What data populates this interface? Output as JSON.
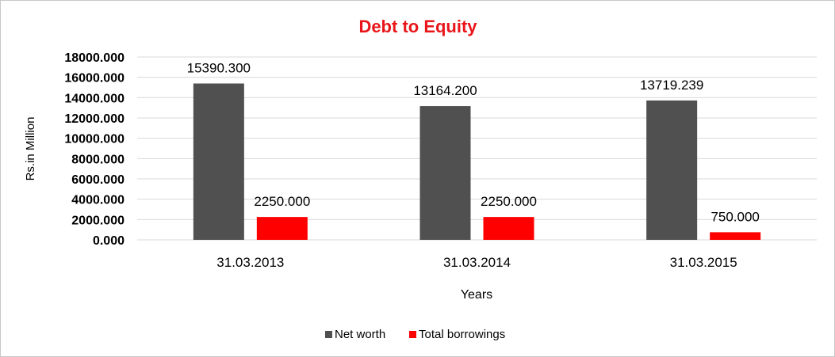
{
  "chart_data": {
    "type": "bar",
    "title": "Debt to Equity",
    "xlabel": "Years",
    "ylabel": "Rs.in Million",
    "categories": [
      "31.03.2013",
      "31.03.2014",
      "31.03.2015"
    ],
    "ylim": [
      0,
      18000
    ],
    "yticks": [
      0,
      2000,
      4000,
      6000,
      8000,
      10000,
      12000,
      14000,
      16000,
      18000
    ],
    "ytick_labels": [
      "0.000",
      "2000.000",
      "4000.000",
      "6000.000",
      "8000.000",
      "10000.000",
      "12000.000",
      "14000.000",
      "16000.000",
      "18000.000"
    ],
    "series": [
      {
        "name": "Net worth",
        "color": "#505050",
        "values": [
          15390.3,
          13164.2,
          13719.239
        ],
        "labels": [
          "15390.300",
          "13164.200",
          "13719.239"
        ]
      },
      {
        "name": "Total borrowings",
        "color": "#ff0000",
        "values": [
          2250,
          2250,
          750
        ],
        "labels": [
          "2250.000",
          "2250.000",
          "750.000"
        ]
      }
    ],
    "grid": true,
    "legend": "bottom",
    "title_color": "#e8161b"
  }
}
